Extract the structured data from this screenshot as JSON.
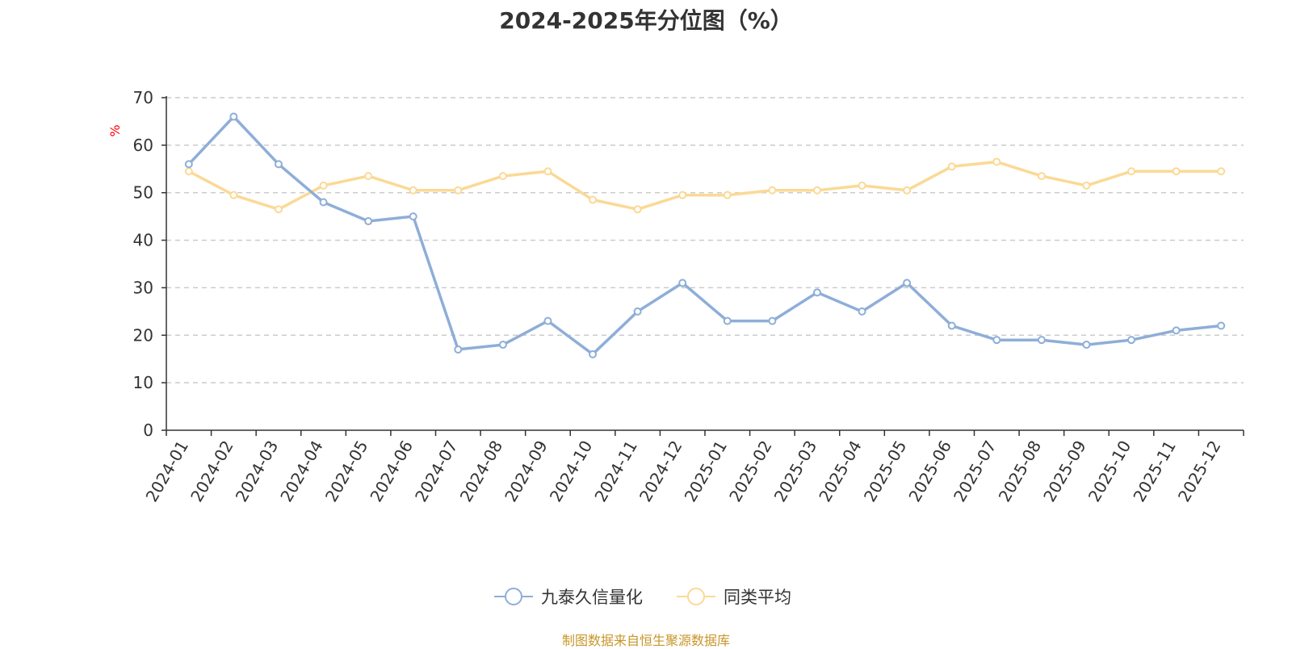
{
  "chart_data": {
    "type": "line",
    "title": "2024-2025年分位图（%）",
    "ylabel": "%",
    "xlabel": "",
    "ylim": [
      0,
      70
    ],
    "yticks": [
      0,
      10,
      20,
      30,
      40,
      50,
      60,
      70
    ],
    "grid": true,
    "legend_position": "bottom-center",
    "categories": [
      "2024-01",
      "2024-02",
      "2024-03",
      "2024-04",
      "2024-05",
      "2024-06",
      "2024-07",
      "2024-08",
      "2024-09",
      "2024-10",
      "2024-11",
      "2024-12",
      "2025-01",
      "2025-02",
      "2025-03",
      "2025-04",
      "2025-05",
      "2025-06",
      "2025-07",
      "2025-08",
      "2025-09",
      "2025-10",
      "2025-11",
      "2025-12"
    ],
    "series": [
      {
        "name": "九泰久信量化",
        "color": "#8eaed8",
        "values": [
          56,
          66,
          56,
          48,
          44,
          45,
          17,
          18,
          23,
          16,
          25,
          31,
          23,
          23,
          29,
          25,
          31,
          22,
          19,
          19,
          18,
          19,
          21,
          22
        ]
      },
      {
        "name": "同类平均",
        "color": "#fbd995",
        "values": [
          54.5,
          49.5,
          46.5,
          51.5,
          53.5,
          50.5,
          50.5,
          53.5,
          54.5,
          48.5,
          46.5,
          49.5,
          49.5,
          50.5,
          50.5,
          51.5,
          50.5,
          55.5,
          56.5,
          53.5,
          51.5,
          54.5,
          54.5,
          54.5
        ]
      }
    ],
    "source": "制图数据来自恒生聚源数据库",
    "colors": {
      "axis": "#333333",
      "grid": "#cccccc",
      "ylabel": "#ff0000",
      "source": "#c8962a"
    }
  }
}
